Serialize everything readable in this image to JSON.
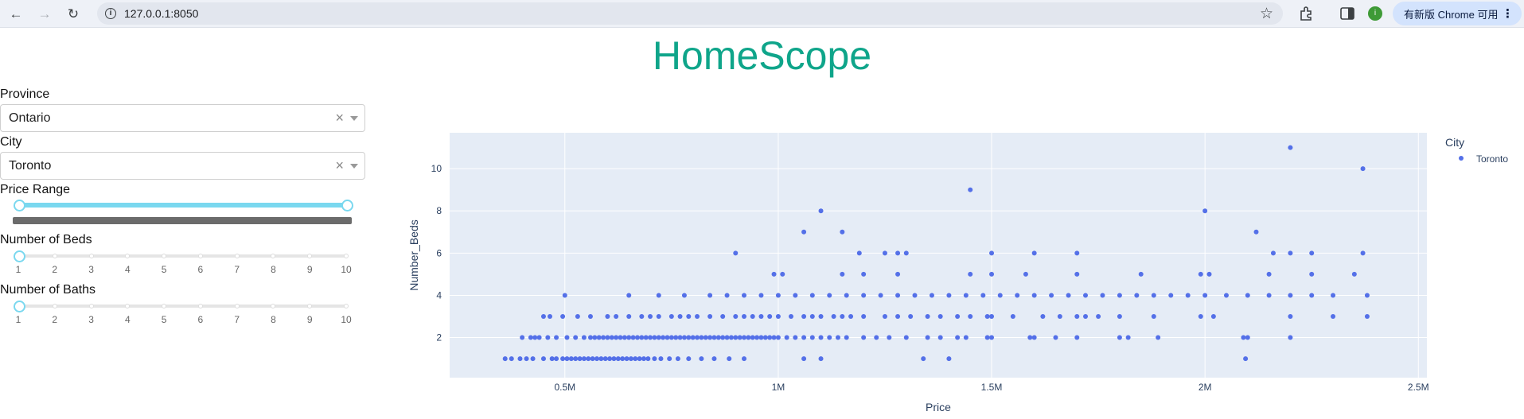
{
  "browser": {
    "url": "127.0.0.1:8050",
    "profile_initial": "i",
    "update_label": "有新版 Chrome 可用",
    "icons": [
      "back-arrow-icon",
      "forward-arrow-icon",
      "reload-icon",
      "info-icon",
      "bookmark-star-icon",
      "extensions-icon",
      "side-panel-icon",
      "more-vertical-icon"
    ]
  },
  "app": {
    "title": "HomeScope",
    "title_color": "#0fa58a",
    "province": {
      "label": "Province",
      "value": "Ontario",
      "clear": "×"
    },
    "city": {
      "label": "City",
      "value": "Toronto",
      "clear": "×"
    },
    "price_range": {
      "label": "Price Range",
      "selected_fraction": [
        0.0,
        1.0
      ]
    },
    "beds": {
      "label": "Number of Beds",
      "value": 1,
      "marks": [
        "1",
        "2",
        "3",
        "4",
        "5",
        "6",
        "7",
        "8",
        "9",
        "10"
      ]
    },
    "baths": {
      "label": "Number of Baths",
      "value": 1,
      "marks": [
        "1",
        "2",
        "3",
        "4",
        "5",
        "6",
        "7",
        "8",
        "9",
        "10"
      ]
    }
  },
  "chart_data": {
    "type": "scatter",
    "title": "",
    "xlabel": "Price",
    "ylabel": "Number_Beds",
    "xlim": [
      230000,
      2520000
    ],
    "ylim": [
      0.1,
      11.7
    ],
    "x_ticks": [
      500000,
      1000000,
      1500000,
      2000000,
      2500000
    ],
    "x_tick_labels": [
      "0.5M",
      "1M",
      "1.5M",
      "2M",
      "2.5M"
    ],
    "y_ticks": [
      2,
      4,
      6,
      8,
      10
    ],
    "y_tick_labels": [
      "2",
      "4",
      "6",
      "8",
      "10"
    ],
    "grid": true,
    "legend_title": "City",
    "legend_position": "top-right",
    "colors": {
      "marker": "#5470e8",
      "plot_bg": "#e5ecf6",
      "grid": "#ffffff",
      "text": "#2a3f5f"
    },
    "series": [
      {
        "name": "Toronto",
        "points": [
          [
            360000,
            1
          ],
          [
            375000,
            1
          ],
          [
            395000,
            1
          ],
          [
            410000,
            1
          ],
          [
            425000,
            1
          ],
          [
            450000,
            1
          ],
          [
            470000,
            1
          ],
          [
            480000,
            1
          ],
          [
            495000,
            1
          ],
          [
            505000,
            1
          ],
          [
            515000,
            1
          ],
          [
            525000,
            1
          ],
          [
            535000,
            1
          ],
          [
            545000,
            1
          ],
          [
            555000,
            1
          ],
          [
            565000,
            1
          ],
          [
            575000,
            1
          ],
          [
            585000,
            1
          ],
          [
            595000,
            1
          ],
          [
            605000,
            1
          ],
          [
            615000,
            1
          ],
          [
            625000,
            1
          ],
          [
            635000,
            1
          ],
          [
            645000,
            1
          ],
          [
            655000,
            1
          ],
          [
            665000,
            1
          ],
          [
            675000,
            1
          ],
          [
            685000,
            1
          ],
          [
            695000,
            1
          ],
          [
            710000,
            1
          ],
          [
            725000,
            1
          ],
          [
            745000,
            1
          ],
          [
            765000,
            1
          ],
          [
            790000,
            1
          ],
          [
            820000,
            1
          ],
          [
            850000,
            1
          ],
          [
            885000,
            1
          ],
          [
            920000,
            1
          ],
          [
            1060000,
            1
          ],
          [
            1100000,
            1
          ],
          [
            1340000,
            1
          ],
          [
            1400000,
            1
          ],
          [
            2095000,
            1
          ],
          [
            400000,
            2
          ],
          [
            420000,
            2
          ],
          [
            430000,
            2
          ],
          [
            440000,
            2
          ],
          [
            460000,
            2
          ],
          [
            480000,
            2
          ],
          [
            505000,
            2
          ],
          [
            525000,
            2
          ],
          [
            545000,
            2
          ],
          [
            560000,
            2
          ],
          [
            570000,
            2
          ],
          [
            580000,
            2
          ],
          [
            590000,
            2
          ],
          [
            600000,
            2
          ],
          [
            610000,
            2
          ],
          [
            620000,
            2
          ],
          [
            630000,
            2
          ],
          [
            640000,
            2
          ],
          [
            650000,
            2
          ],
          [
            660000,
            2
          ],
          [
            670000,
            2
          ],
          [
            680000,
            2
          ],
          [
            690000,
            2
          ],
          [
            700000,
            2
          ],
          [
            710000,
            2
          ],
          [
            720000,
            2
          ],
          [
            730000,
            2
          ],
          [
            740000,
            2
          ],
          [
            750000,
            2
          ],
          [
            760000,
            2
          ],
          [
            770000,
            2
          ],
          [
            780000,
            2
          ],
          [
            790000,
            2
          ],
          [
            800000,
            2
          ],
          [
            810000,
            2
          ],
          [
            820000,
            2
          ],
          [
            830000,
            2
          ],
          [
            840000,
            2
          ],
          [
            850000,
            2
          ],
          [
            860000,
            2
          ],
          [
            870000,
            2
          ],
          [
            880000,
            2
          ],
          [
            890000,
            2
          ],
          [
            900000,
            2
          ],
          [
            910000,
            2
          ],
          [
            920000,
            2
          ],
          [
            930000,
            2
          ],
          [
            940000,
            2
          ],
          [
            950000,
            2
          ],
          [
            960000,
            2
          ],
          [
            970000,
            2
          ],
          [
            980000,
            2
          ],
          [
            990000,
            2
          ],
          [
            1000000,
            2
          ],
          [
            1020000,
            2
          ],
          [
            1040000,
            2
          ],
          [
            1060000,
            2
          ],
          [
            1080000,
            2
          ],
          [
            1100000,
            2
          ],
          [
            1120000,
            2
          ],
          [
            1140000,
            2
          ],
          [
            1160000,
            2
          ],
          [
            1200000,
            2
          ],
          [
            1230000,
            2
          ],
          [
            1260000,
            2
          ],
          [
            1300000,
            2
          ],
          [
            1350000,
            2
          ],
          [
            1380000,
            2
          ],
          [
            1420000,
            2
          ],
          [
            1440000,
            2
          ],
          [
            1490000,
            2
          ],
          [
            1500000,
            2
          ],
          [
            1590000,
            2
          ],
          [
            1600000,
            2
          ],
          [
            1650000,
            2
          ],
          [
            1700000,
            2
          ],
          [
            1800000,
            2
          ],
          [
            1820000,
            2
          ],
          [
            1890000,
            2
          ],
          [
            2090000,
            2
          ],
          [
            2100000,
            2
          ],
          [
            2200000,
            2
          ],
          [
            450000,
            3
          ],
          [
            465000,
            3
          ],
          [
            495000,
            3
          ],
          [
            530000,
            3
          ],
          [
            560000,
            3
          ],
          [
            600000,
            3
          ],
          [
            620000,
            3
          ],
          [
            650000,
            3
          ],
          [
            680000,
            3
          ],
          [
            700000,
            3
          ],
          [
            720000,
            3
          ],
          [
            750000,
            3
          ],
          [
            770000,
            3
          ],
          [
            790000,
            3
          ],
          [
            810000,
            3
          ],
          [
            840000,
            3
          ],
          [
            870000,
            3
          ],
          [
            900000,
            3
          ],
          [
            920000,
            3
          ],
          [
            940000,
            3
          ],
          [
            960000,
            3
          ],
          [
            980000,
            3
          ],
          [
            1000000,
            3
          ],
          [
            1030000,
            3
          ],
          [
            1060000,
            3
          ],
          [
            1080000,
            3
          ],
          [
            1100000,
            3
          ],
          [
            1130000,
            3
          ],
          [
            1150000,
            3
          ],
          [
            1170000,
            3
          ],
          [
            1200000,
            3
          ],
          [
            1250000,
            3
          ],
          [
            1280000,
            3
          ],
          [
            1310000,
            3
          ],
          [
            1350000,
            3
          ],
          [
            1380000,
            3
          ],
          [
            1420000,
            3
          ],
          [
            1450000,
            3
          ],
          [
            1490000,
            3
          ],
          [
            1500000,
            3
          ],
          [
            1550000,
            3
          ],
          [
            1620000,
            3
          ],
          [
            1660000,
            3
          ],
          [
            1700000,
            3
          ],
          [
            1720000,
            3
          ],
          [
            1750000,
            3
          ],
          [
            1800000,
            3
          ],
          [
            1880000,
            3
          ],
          [
            1990000,
            3
          ],
          [
            2020000,
            3
          ],
          [
            2200000,
            3
          ],
          [
            2300000,
            3
          ],
          [
            2380000,
            3
          ],
          [
            500000,
            4
          ],
          [
            650000,
            4
          ],
          [
            720000,
            4
          ],
          [
            780000,
            4
          ],
          [
            840000,
            4
          ],
          [
            880000,
            4
          ],
          [
            920000,
            4
          ],
          [
            960000,
            4
          ],
          [
            1000000,
            4
          ],
          [
            1040000,
            4
          ],
          [
            1080000,
            4
          ],
          [
            1120000,
            4
          ],
          [
            1160000,
            4
          ],
          [
            1200000,
            4
          ],
          [
            1240000,
            4
          ],
          [
            1280000,
            4
          ],
          [
            1320000,
            4
          ],
          [
            1360000,
            4
          ],
          [
            1400000,
            4
          ],
          [
            1440000,
            4
          ],
          [
            1480000,
            4
          ],
          [
            1520000,
            4
          ],
          [
            1560000,
            4
          ],
          [
            1600000,
            4
          ],
          [
            1640000,
            4
          ],
          [
            1680000,
            4
          ],
          [
            1720000,
            4
          ],
          [
            1760000,
            4
          ],
          [
            1800000,
            4
          ],
          [
            1840000,
            4
          ],
          [
            1880000,
            4
          ],
          [
            1920000,
            4
          ],
          [
            1960000,
            4
          ],
          [
            2000000,
            4
          ],
          [
            2050000,
            4
          ],
          [
            2100000,
            4
          ],
          [
            2150000,
            4
          ],
          [
            2200000,
            4
          ],
          [
            2250000,
            4
          ],
          [
            2300000,
            4
          ],
          [
            2380000,
            4
          ],
          [
            990000,
            5
          ],
          [
            1010000,
            5
          ],
          [
            1150000,
            5
          ],
          [
            1200000,
            5
          ],
          [
            1280000,
            5
          ],
          [
            1450000,
            5
          ],
          [
            1500000,
            5
          ],
          [
            1580000,
            5
          ],
          [
            1700000,
            5
          ],
          [
            1850000,
            5
          ],
          [
            1990000,
            5
          ],
          [
            2010000,
            5
          ],
          [
            2150000,
            5
          ],
          [
            2250000,
            5
          ],
          [
            2350000,
            5
          ],
          [
            900000,
            6
          ],
          [
            1190000,
            6
          ],
          [
            1250000,
            6
          ],
          [
            1280000,
            6
          ],
          [
            1300000,
            6
          ],
          [
            1500000,
            6
          ],
          [
            1600000,
            6
          ],
          [
            1700000,
            6
          ],
          [
            2160000,
            6
          ],
          [
            2200000,
            6
          ],
          [
            2250000,
            6
          ],
          [
            2370000,
            6
          ],
          [
            1060000,
            7
          ],
          [
            1150000,
            7
          ],
          [
            2120000,
            7
          ],
          [
            1100000,
            8
          ],
          [
            2000000,
            8
          ],
          [
            1450000,
            9
          ],
          [
            2370000,
            10
          ],
          [
            2200000,
            11
          ]
        ]
      }
    ]
  }
}
